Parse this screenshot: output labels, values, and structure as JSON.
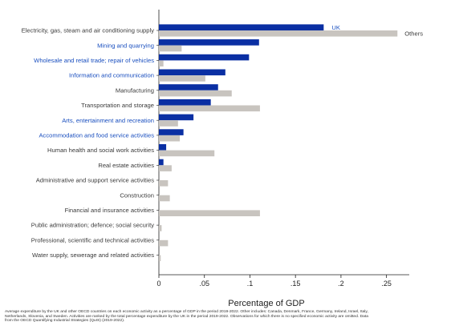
{
  "chart_data": {
    "type": "bar",
    "orientation": "horizontal",
    "categories": [
      "Electricity, gas, steam and air conditioning supply",
      "Mining and quarrying",
      "Wholesale and retail trade; repair of vehicles",
      "Information and communication",
      "Manufacturing",
      "Transportation and storage",
      "Arts, entertainment and recreation",
      "Accommodation and food service activities",
      "Human health and social work activities",
      "Real estate activities",
      "Administrative and support service activities",
      "Construction",
      "Financial and insurance activities",
      "Public administration; defence; social security",
      "Professional, scientific and technical activities",
      "Water supply, sewerage and related activities"
    ],
    "highlighted_categories": [
      "Mining and quarrying",
      "Wholesale and retail trade; repair of vehicles",
      "Information and communication",
      "Arts, entertainment and recreation",
      "Accommodation and food service activities"
    ],
    "series": [
      {
        "name": "UK",
        "color": "#0a2fa3",
        "values": [
          0.181,
          0.11,
          0.099,
          0.073,
          0.065,
          0.057,
          0.038,
          0.027,
          0.008,
          0.005,
          null,
          null,
          null,
          null,
          null,
          null
        ]
      },
      {
        "name": "Others",
        "color": "#c8c4bf",
        "values": [
          0.262,
          0.025,
          0.005,
          0.051,
          0.08,
          0.111,
          0.021,
          0.023,
          0.061,
          0.014,
          0.01,
          0.012,
          0.111,
          0.003,
          0.01,
          0.002
        ]
      }
    ],
    "xlabel": "Percentage of GDP",
    "ylabel": "",
    "xlim": [
      0,
      0.275
    ],
    "xticks": [
      0,
      0.05,
      0.1,
      0.15,
      0.2,
      0.25
    ],
    "xtick_labels": [
      "0",
      ".05",
      ".1",
      ".15",
      ".2",
      ".25"
    ],
    "grid": false,
    "label_color_default": "#3a3a3a",
    "label_color_highlight": "#1a4fbf"
  },
  "note": {
    "line1": "Average expenditure by the UK and other OECD countries on each economic activity as a percentage of GDP in the period 2019-2022. Other includes: Canada, Denmark, France, Germany, Ireland, Israel, Italy,",
    "line2": "Netherlands, Slovenia, and Sweden. Activities are ranked by the total percentage expenditure by the UK in the period 2019-2022. Observations for which there is no specified economic activity are omitted. Data",
    "line3": "from the OECD Quantifying Industrial Strategies (QuIS) (2019-2022)."
  }
}
